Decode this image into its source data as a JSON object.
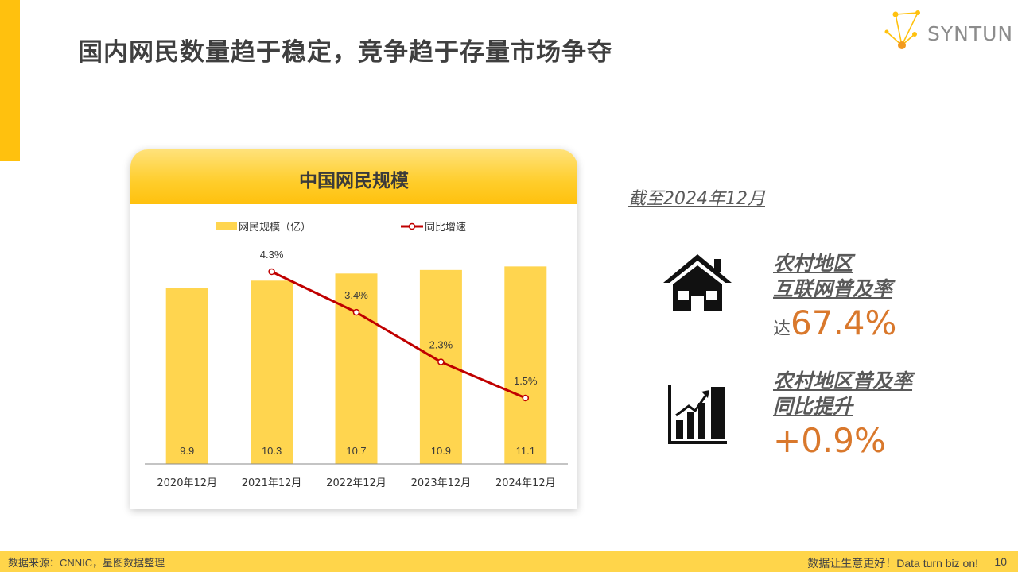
{
  "page": {
    "title": "国内网民数量趋于稳定，竞争趋于存量市场争夺",
    "page_number": "10"
  },
  "logo": {
    "text": "SYNTUN"
  },
  "as_of": "截至2024年12月",
  "stats": [
    {
      "label_line1": "农村地区",
      "label_line2": "互联网普及率",
      "prefix": "达",
      "value": "67.4%",
      "icon": "house-icon"
    },
    {
      "label_line1": "农村地区普及率",
      "label_line2": "同比提升",
      "prefix": "",
      "value": "+0.9%",
      "icon": "growth-chart-icon"
    }
  ],
  "footer": {
    "source": "数据来源：CNNIC，星图数据整理",
    "slogan": "数据让生意更好！Data turn biz on!"
  },
  "colors": {
    "accent": "#FFC10E",
    "bar": "#FFD54F",
    "line": "#C00000",
    "value": "#D9782C"
  },
  "chart_data": {
    "type": "bar",
    "title": "中国网民规模",
    "categories": [
      "2020年12月",
      "2021年12月",
      "2022年12月",
      "2023年12月",
      "2024年12月"
    ],
    "series": [
      {
        "name": "网民规模（亿）",
        "type": "bar",
        "values": [
          9.9,
          10.3,
          10.7,
          10.9,
          11.1
        ],
        "labels": [
          "9.9",
          "10.3",
          "10.7",
          "10.9",
          "11.1"
        ]
      },
      {
        "name": "同比增速",
        "type": "line",
        "values": [
          null,
          4.3,
          3.4,
          2.3,
          1.5
        ],
        "labels": [
          "",
          "4.3%",
          "3.4%",
          "2.3%",
          "1.5%"
        ]
      }
    ],
    "legend_position": "top",
    "grid": false
  }
}
